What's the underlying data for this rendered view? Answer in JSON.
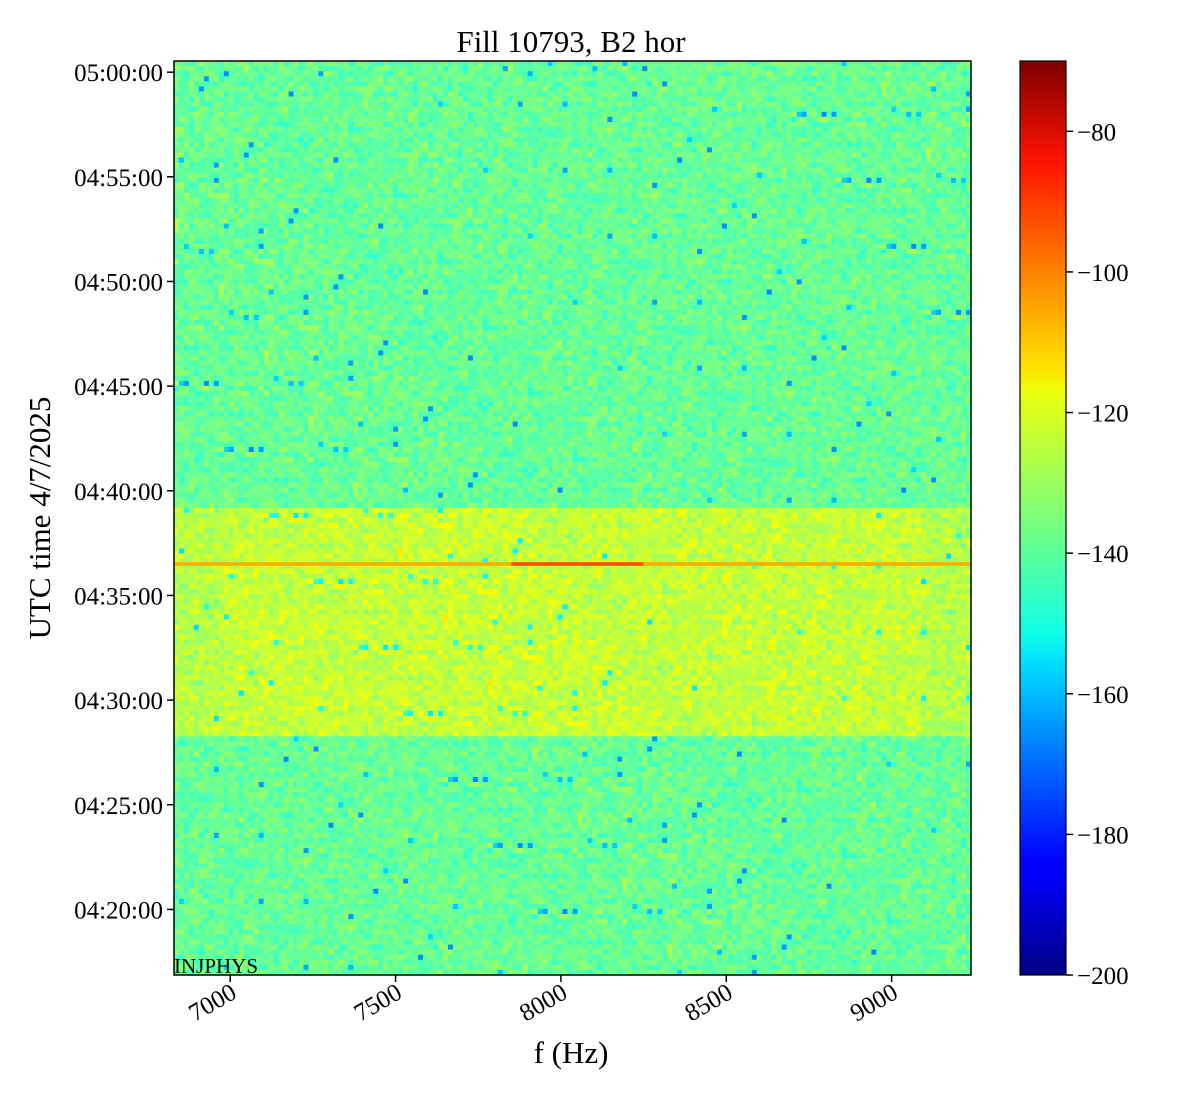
{
  "chart_data": {
    "type": "heatmap",
    "title": "Fill 10793, B2 hor",
    "xlabel": "f (Hz)",
    "ylabel": "UTC time 4/7/2025",
    "xlim": [
      6830,
      9240
    ],
    "x_ticks": [
      7000,
      7500,
      8000,
      8500,
      9000
    ],
    "x_tick_labels": [
      "7000",
      "7500",
      "8000",
      "8500",
      "9000"
    ],
    "y_ticks": [
      "04:20:00",
      "04:25:00",
      "04:30:00",
      "04:35:00",
      "04:40:00",
      "04:45:00",
      "04:50:00",
      "04:55:00",
      "05:00:00"
    ],
    "y_range": [
      "04:16:52",
      "05:00:32"
    ],
    "colormap": "jet",
    "colorbar": {
      "range": [
        -200,
        -70
      ],
      "ticks": [
        -80,
        -100,
        -120,
        -140,
        -160,
        -180,
        -200
      ],
      "tick_labels": [
        "−80",
        "−100",
        "−120",
        "−140",
        "−160",
        "−180",
        "−200"
      ]
    },
    "background_level": -138,
    "features": {
      "elevated_band": {
        "time_start": "04:28:20",
        "time_end": "04:39:10",
        "level": -126
      },
      "horizontal_line": {
        "time": "04:36:30",
        "level": -108,
        "peak_level": -96,
        "peak_f_range": [
          7850,
          8250
        ]
      },
      "vertical_lines": [
        {
          "f": 8055,
          "time_start": "04:28:20",
          "time_end": "04:39:20",
          "level": -124
        },
        {
          "f": 8240,
          "time_start": "04:28:20",
          "time_end": "04:39:20",
          "level": -124
        }
      ]
    },
    "annotation": "INJPHYS"
  }
}
